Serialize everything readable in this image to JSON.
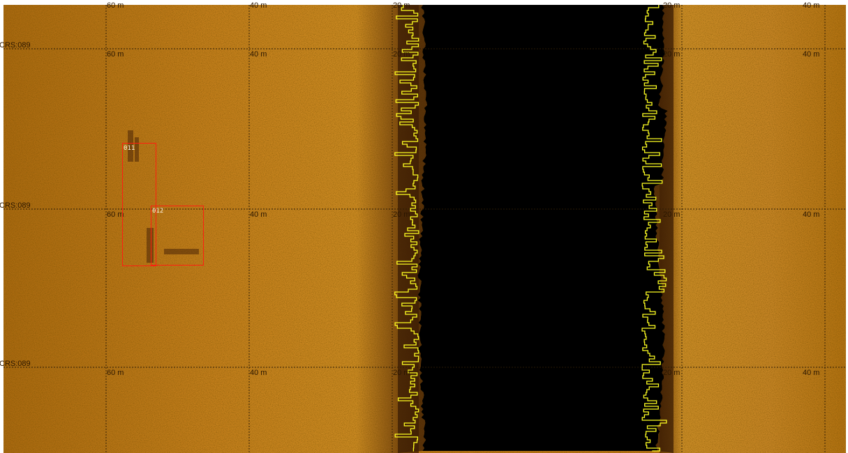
{
  "viewer": {
    "mode": "side-scan-sonar-waterfall",
    "colors": {
      "seabed": "#b77414",
      "water_column": "#000000",
      "altitude_trace": "#ffff22",
      "target_box": "#ff1f10",
      "grid": "#2a1a05"
    }
  },
  "range_labels": [
    "60 m",
    "40 m",
    "20 m",
    "20 m",
    "40 m"
  ],
  "course_label": "CRS:089",
  "targets": [
    {
      "id": "011"
    },
    {
      "id": "012"
    }
  ]
}
